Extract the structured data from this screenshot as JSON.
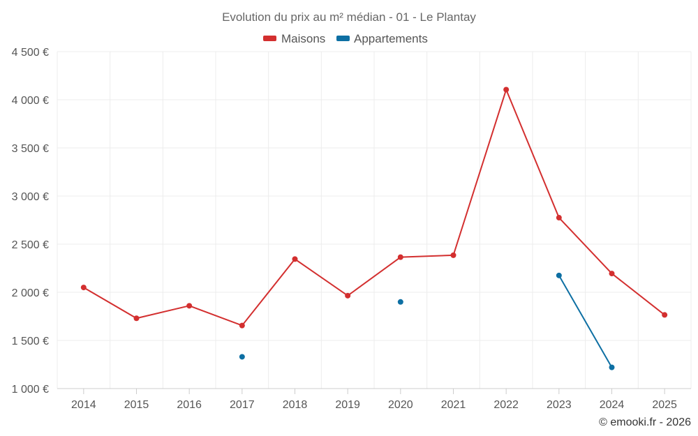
{
  "chart_data": {
    "type": "line",
    "title": "Evolution du prix au m² médian - 01 - Le Plantay",
    "categories": [
      "2014",
      "2015",
      "2016",
      "2017",
      "2018",
      "2019",
      "2020",
      "2021",
      "2022",
      "2023",
      "2024",
      "2025"
    ],
    "ylim": [
      1000,
      4500
    ],
    "yticks": [
      1000,
      1500,
      2000,
      2500,
      3000,
      3500,
      4000,
      4500
    ],
    "ytick_labels": [
      "1 000 €",
      "1 500 €",
      "2 000 €",
      "2 500 €",
      "3 000 €",
      "3 500 €",
      "4 000 €",
      "4 500 €"
    ],
    "grid": true,
    "legend_position": "top-center",
    "series": [
      {
        "name": "Maisons",
        "color": "#d32f2f",
        "values": [
          2050,
          1730,
          1860,
          1655,
          2345,
          1965,
          2365,
          2385,
          4105,
          2775,
          2195,
          1765
        ]
      },
      {
        "name": "Appartements",
        "color": "#0d6fa3",
        "values": [
          null,
          null,
          null,
          1330,
          null,
          null,
          1900,
          null,
          null,
          2175,
          1220,
          null
        ]
      }
    ]
  },
  "credit": "© emooki.fr - 2026"
}
